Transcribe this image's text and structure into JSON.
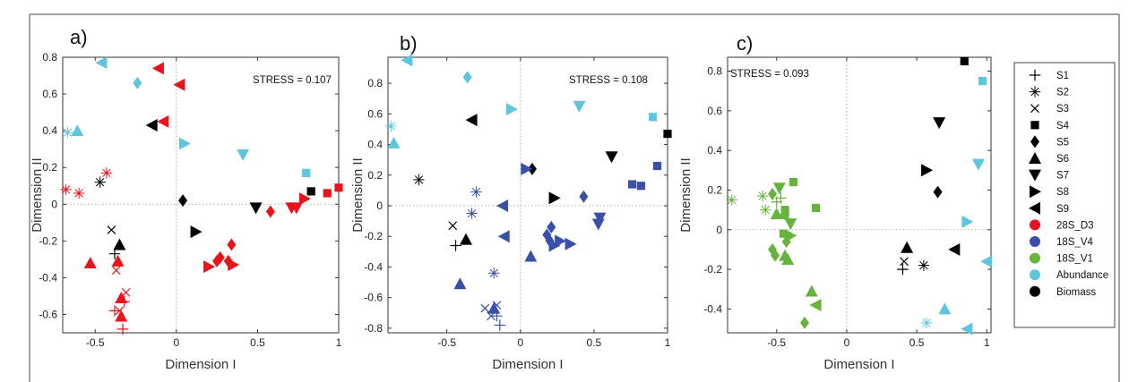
{
  "chart_data": [
    {
      "panel_label": "a)",
      "type": "scatter",
      "stress": "STRESS = 0.107",
      "xlabel": "Dimension I",
      "ylabel": "Dimension II",
      "xlim": [
        -0.7,
        1.0
      ],
      "ylim": [
        -0.7,
        0.8
      ],
      "xticks": [
        -0.5,
        0,
        0.5,
        1
      ],
      "xtick_labels": [
        "-0.5",
        "0",
        "0.5",
        "1"
      ],
      "yticks": [
        -0.6,
        -0.4,
        -0.2,
        0,
        0.2,
        0.4,
        0.6,
        0.8
      ],
      "ytick_labels": [
        "-0.6",
        "-0.4",
        "-0.2",
        "0",
        "0.2",
        "0.4",
        "0.6",
        "0.8"
      ],
      "points": [
        {
          "x": -0.46,
          "y": 0.77,
          "s": "S9",
          "c": "abundance"
        },
        {
          "x": -0.24,
          "y": 0.66,
          "s": "S5",
          "c": "abundance"
        },
        {
          "x": -0.11,
          "y": 0.74,
          "s": "S9",
          "c": "28S_D3"
        },
        {
          "x": 0.02,
          "y": 0.65,
          "s": "S9",
          "c": "28S_D3"
        },
        {
          "x": -0.08,
          "y": 0.45,
          "s": "S9",
          "c": "28S_D3"
        },
        {
          "x": -0.15,
          "y": 0.43,
          "s": "S9",
          "c": "biomass"
        },
        {
          "x": 0.05,
          "y": 0.33,
          "s": "S8",
          "c": "abundance"
        },
        {
          "x": 0.41,
          "y": 0.27,
          "s": "S7",
          "c": "abundance"
        },
        {
          "x": -0.67,
          "y": 0.39,
          "s": "S2",
          "c": "abundance"
        },
        {
          "x": -0.61,
          "y": 0.4,
          "s": "S6",
          "c": "abundance"
        },
        {
          "x": -0.68,
          "y": 0.08,
          "s": "S2",
          "c": "28S_D3"
        },
        {
          "x": -0.6,
          "y": 0.06,
          "s": "S2",
          "c": "28S_D3"
        },
        {
          "x": -0.47,
          "y": 0.12,
          "s": "S2",
          "c": "biomass"
        },
        {
          "x": -0.43,
          "y": 0.17,
          "s": "S2",
          "c": "28S_D3"
        },
        {
          "x": 0.04,
          "y": 0.02,
          "s": "S5",
          "c": "biomass"
        },
        {
          "x": 0.8,
          "y": 0.17,
          "s": "S4",
          "c": "abundance"
        },
        {
          "x": 0.83,
          "y": 0.07,
          "s": "S4",
          "c": "biomass"
        },
        {
          "x": 0.93,
          "y": 0.06,
          "s": "S4",
          "c": "28S_D3"
        },
        {
          "x": 1.0,
          "y": 0.09,
          "s": "S4",
          "c": "28S_D3"
        },
        {
          "x": 0.79,
          "y": 0.03,
          "s": "S8",
          "c": "28S_D3"
        },
        {
          "x": 0.74,
          "y": -0.02,
          "s": "S7",
          "c": "28S_D3"
        },
        {
          "x": 0.71,
          "y": -0.02,
          "s": "S7",
          "c": "28S_D3"
        },
        {
          "x": 0.49,
          "y": -0.02,
          "s": "S7",
          "c": "biomass"
        },
        {
          "x": 0.58,
          "y": -0.04,
          "s": "S5",
          "c": "28S_D3"
        },
        {
          "x": 0.12,
          "y": -0.15,
          "s": "S8",
          "c": "biomass"
        },
        {
          "x": 0.34,
          "y": -0.22,
          "s": "S5",
          "c": "28S_D3"
        },
        {
          "x": 0.27,
          "y": -0.29,
          "s": "S5",
          "c": "28S_D3"
        },
        {
          "x": 0.25,
          "y": -0.31,
          "s": "S5",
          "c": "28S_D3"
        },
        {
          "x": 0.32,
          "y": -0.31,
          "s": "S5",
          "c": "28S_D3"
        },
        {
          "x": 0.35,
          "y": -0.33,
          "s": "S8",
          "c": "28S_D3"
        },
        {
          "x": 0.2,
          "y": -0.34,
          "s": "S8",
          "c": "28S_D3"
        },
        {
          "x": -0.4,
          "y": -0.14,
          "s": "S3",
          "c": "biomass"
        },
        {
          "x": -0.35,
          "y": -0.22,
          "s": "S6",
          "c": "biomass"
        },
        {
          "x": -0.38,
          "y": -0.27,
          "s": "S1",
          "c": "biomass"
        },
        {
          "x": -0.36,
          "y": -0.31,
          "s": "S6",
          "c": "28S_D3"
        },
        {
          "x": -0.53,
          "y": -0.32,
          "s": "S6",
          "c": "28S_D3"
        },
        {
          "x": -0.37,
          "y": -0.36,
          "s": "S3",
          "c": "28S_D3"
        },
        {
          "x": -0.34,
          "y": -0.51,
          "s": "S6",
          "c": "28S_D3"
        },
        {
          "x": -0.31,
          "y": -0.48,
          "s": "S3",
          "c": "28S_D3"
        },
        {
          "x": -0.32,
          "y": -0.53,
          "s": "S1",
          "c": "28S_D3"
        },
        {
          "x": -0.38,
          "y": -0.58,
          "s": "S1",
          "c": "28S_D3"
        },
        {
          "x": -0.35,
          "y": -0.58,
          "s": "S3",
          "c": "28S_D3"
        },
        {
          "x": -0.34,
          "y": -0.61,
          "s": "S6",
          "c": "28S_D3"
        },
        {
          "x": -0.33,
          "y": -0.68,
          "s": "S1",
          "c": "28S_D3"
        }
      ]
    },
    {
      "panel_label": "b)",
      "type": "scatter",
      "stress": "STRESS = 0.108",
      "xlabel": "Dimension I",
      "ylabel": "Dimension II",
      "xlim": [
        -0.9,
        1.0
      ],
      "ylim": [
        -0.83,
        0.97
      ],
      "xticks": [
        -0.5,
        0,
        0.5,
        1
      ],
      "xtick_labels": [
        "-0.5",
        "0",
        "0.5",
        "1"
      ],
      "yticks": [
        -0.8,
        -0.6,
        -0.4,
        -0.2,
        0,
        0.2,
        0.4,
        0.6,
        0.8
      ],
      "ytick_labels": [
        "-0.8",
        "-0.6",
        "-0.4",
        "-0.2",
        "0",
        "0.2",
        "0.4",
        "0.6",
        "0.8"
      ],
      "points": [
        {
          "x": -0.77,
          "y": 0.95,
          "s": "S9",
          "c": "abundance"
        },
        {
          "x": -0.36,
          "y": 0.84,
          "s": "S5",
          "c": "abundance"
        },
        {
          "x": -0.33,
          "y": 0.56,
          "s": "S9",
          "c": "biomass"
        },
        {
          "x": -0.06,
          "y": 0.63,
          "s": "S8",
          "c": "abundance"
        },
        {
          "x": 0.4,
          "y": 0.65,
          "s": "S7",
          "c": "abundance"
        },
        {
          "x": -0.88,
          "y": 0.52,
          "s": "S2",
          "c": "abundance"
        },
        {
          "x": -0.86,
          "y": 0.41,
          "s": "S6",
          "c": "abundance"
        },
        {
          "x": -0.69,
          "y": 0.17,
          "s": "S2",
          "c": "biomass"
        },
        {
          "x": 0.9,
          "y": 0.58,
          "s": "S4",
          "c": "abundance"
        },
        {
          "x": 1.0,
          "y": 0.47,
          "s": "S4",
          "c": "biomass"
        },
        {
          "x": 0.62,
          "y": 0.32,
          "s": "S7",
          "c": "biomass"
        },
        {
          "x": 0.76,
          "y": 0.14,
          "s": "S4",
          "c": "18S_V4"
        },
        {
          "x": 0.82,
          "y": 0.13,
          "s": "S4",
          "c": "18S_V4"
        },
        {
          "x": 0.93,
          "y": 0.26,
          "s": "S4",
          "c": "18S_V4"
        },
        {
          "x": 0.08,
          "y": 0.24,
          "s": "S5",
          "c": "biomass"
        },
        {
          "x": 0.04,
          "y": 0.24,
          "s": "S8",
          "c": "18S_V4"
        },
        {
          "x": -0.3,
          "y": 0.09,
          "s": "S2",
          "c": "18S_V4"
        },
        {
          "x": -0.33,
          "y": -0.05,
          "s": "S2",
          "c": "18S_V4"
        },
        {
          "x": -0.12,
          "y": 0.0,
          "s": "S9",
          "c": "18S_V4"
        },
        {
          "x": 0.23,
          "y": 0.05,
          "s": "S8",
          "c": "biomass"
        },
        {
          "x": 0.43,
          "y": 0.06,
          "s": "S5",
          "c": "18S_V4"
        },
        {
          "x": 0.54,
          "y": -0.08,
          "s": "S7",
          "c": "18S_V4"
        },
        {
          "x": 0.53,
          "y": -0.12,
          "s": "S7",
          "c": "18S_V4"
        },
        {
          "x": 0.21,
          "y": -0.14,
          "s": "S5",
          "c": "18S_V4"
        },
        {
          "x": 0.18,
          "y": -0.19,
          "s": "S5",
          "c": "18S_V4"
        },
        {
          "x": -0.11,
          "y": -0.2,
          "s": "S9",
          "c": "18S_V4"
        },
        {
          "x": 0.2,
          "y": -0.23,
          "s": "S5",
          "c": "18S_V4"
        },
        {
          "x": 0.27,
          "y": -0.23,
          "s": "S8",
          "c": "18S_V4"
        },
        {
          "x": 0.34,
          "y": -0.25,
          "s": "S8",
          "c": "18S_V4"
        },
        {
          "x": 0.23,
          "y": -0.26,
          "s": "S8",
          "c": "18S_V4"
        },
        {
          "x": 0.07,
          "y": -0.33,
          "s": "S6",
          "c": "18S_V4"
        },
        {
          "x": -0.46,
          "y": -0.13,
          "s": "S3",
          "c": "biomass"
        },
        {
          "x": -0.44,
          "y": -0.26,
          "s": "S1",
          "c": "biomass"
        },
        {
          "x": -0.37,
          "y": -0.22,
          "s": "S6",
          "c": "biomass"
        },
        {
          "x": -0.41,
          "y": -0.51,
          "s": "S6",
          "c": "18S_V4"
        },
        {
          "x": -0.18,
          "y": -0.44,
          "s": "S2",
          "c": "18S_V4"
        },
        {
          "x": -0.16,
          "y": -0.65,
          "s": "S3",
          "c": "18S_V4"
        },
        {
          "x": -0.18,
          "y": -0.67,
          "s": "S6",
          "c": "18S_V4"
        },
        {
          "x": -0.24,
          "y": -0.67,
          "s": "S3",
          "c": "18S_V4"
        },
        {
          "x": -0.2,
          "y": -0.72,
          "s": "S3",
          "c": "18S_V4"
        },
        {
          "x": -0.16,
          "y": -0.72,
          "s": "S1",
          "c": "18S_V4"
        },
        {
          "x": -0.14,
          "y": -0.78,
          "s": "S1",
          "c": "18S_V4"
        }
      ]
    },
    {
      "panel_label": "c)",
      "type": "scatter",
      "stress": "STRESS = 0.093",
      "xlabel": "Dimension I",
      "ylabel": "Dimension II",
      "xlim": [
        -0.85,
        1.03
      ],
      "ylim": [
        -0.52,
        0.87
      ],
      "xticks": [
        -0.5,
        0,
        0.5,
        1
      ],
      "xtick_labels": [
        "-0.5",
        "0",
        "0.5",
        "1"
      ],
      "yticks": [
        -0.4,
        -0.2,
        0,
        0.2,
        0.4,
        0.6,
        0.8
      ],
      "ytick_labels": [
        "-0.4",
        "-0.2",
        "0",
        "0.2",
        "0.4",
        "0.6",
        "0.8"
      ],
      "points": [
        {
          "x": 0.84,
          "y": 0.85,
          "s": "S4",
          "c": "biomass"
        },
        {
          "x": 0.97,
          "y": 0.75,
          "s": "S4",
          "c": "abundance"
        },
        {
          "x": 0.66,
          "y": 0.54,
          "s": "S7",
          "c": "biomass"
        },
        {
          "x": 0.94,
          "y": 0.33,
          "s": "S7",
          "c": "abundance"
        },
        {
          "x": 0.57,
          "y": 0.3,
          "s": "S8",
          "c": "biomass"
        },
        {
          "x": 0.65,
          "y": 0.19,
          "s": "S5",
          "c": "biomass"
        },
        {
          "x": 0.86,
          "y": 0.04,
          "s": "S8",
          "c": "abundance"
        },
        {
          "x": 0.43,
          "y": -0.09,
          "s": "S6",
          "c": "biomass"
        },
        {
          "x": 0.77,
          "y": -0.1,
          "s": "S9",
          "c": "biomass"
        },
        {
          "x": 1.0,
          "y": -0.16,
          "s": "S9",
          "c": "abundance"
        },
        {
          "x": 0.41,
          "y": -0.16,
          "s": "S3",
          "c": "biomass"
        },
        {
          "x": 0.55,
          "y": -0.18,
          "s": "S2",
          "c": "biomass"
        },
        {
          "x": 0.4,
          "y": -0.2,
          "s": "S1",
          "c": "biomass"
        },
        {
          "x": 0.7,
          "y": -0.4,
          "s": "S6",
          "c": "abundance"
        },
        {
          "x": 0.57,
          "y": -0.47,
          "s": "S2",
          "c": "abundance"
        },
        {
          "x": 0.86,
          "y": -0.5,
          "s": "S9",
          "c": "abundance"
        },
        {
          "x": -0.82,
          "y": 0.15,
          "s": "S2",
          "c": "18S_V1"
        },
        {
          "x": -0.6,
          "y": 0.17,
          "s": "S2",
          "c": "18S_V1"
        },
        {
          "x": -0.58,
          "y": 0.1,
          "s": "S2",
          "c": "18S_V1"
        },
        {
          "x": -0.53,
          "y": 0.18,
          "s": "S5",
          "c": "18S_V1"
        },
        {
          "x": -0.48,
          "y": 0.21,
          "s": "S7",
          "c": "18S_V1"
        },
        {
          "x": -0.38,
          "y": 0.24,
          "s": "S4",
          "c": "18S_V1"
        },
        {
          "x": -0.22,
          "y": 0.11,
          "s": "S4",
          "c": "18S_V1"
        },
        {
          "x": -0.44,
          "y": 0.1,
          "s": "S4",
          "c": "18S_V1"
        },
        {
          "x": -0.5,
          "y": 0.14,
          "s": "S1",
          "c": "18S_V1"
        },
        {
          "x": -0.47,
          "y": 0.16,
          "s": "S1",
          "c": "18S_V1"
        },
        {
          "x": -0.5,
          "y": 0.08,
          "s": "S6",
          "c": "18S_V1"
        },
        {
          "x": -0.45,
          "y": 0.07,
          "s": "S9",
          "c": "18S_V1"
        },
        {
          "x": -0.4,
          "y": 0.03,
          "s": "S7",
          "c": "18S_V1"
        },
        {
          "x": -0.45,
          "y": -0.02,
          "s": "S4",
          "c": "18S_V1"
        },
        {
          "x": -0.4,
          "y": -0.03,
          "s": "S8",
          "c": "18S_V1"
        },
        {
          "x": -0.43,
          "y": -0.06,
          "s": "S5",
          "c": "18S_V1"
        },
        {
          "x": -0.53,
          "y": -0.1,
          "s": "S5",
          "c": "18S_V1"
        },
        {
          "x": -0.51,
          "y": -0.13,
          "s": "S5",
          "c": "18S_V1"
        },
        {
          "x": -0.44,
          "y": -0.13,
          "s": "S6",
          "c": "18S_V1"
        },
        {
          "x": -0.42,
          "y": -0.15,
          "s": "S6",
          "c": "18S_V1"
        },
        {
          "x": -0.25,
          "y": -0.31,
          "s": "S6",
          "c": "18S_V1"
        },
        {
          "x": -0.22,
          "y": -0.38,
          "s": "S9",
          "c": "18S_V1"
        },
        {
          "x": -0.3,
          "y": -0.47,
          "s": "S5",
          "c": "18S_V1"
        }
      ]
    }
  ],
  "legend": {
    "symbols": [
      {
        "label": "S1",
        "shape": "plus"
      },
      {
        "label": "S2",
        "shape": "asterisk"
      },
      {
        "label": "S3",
        "shape": "cross"
      },
      {
        "label": "S4",
        "shape": "square"
      },
      {
        "label": "S5",
        "shape": "diamond"
      },
      {
        "label": "S6",
        "shape": "triangle-up"
      },
      {
        "label": "S7",
        "shape": "triangle-down"
      },
      {
        "label": "S8",
        "shape": "triangle-right"
      },
      {
        "label": "S9",
        "shape": "triangle-left"
      }
    ],
    "colors": [
      {
        "label": "28S_D3",
        "color": "#e8141c"
      },
      {
        "label": "18S_V4",
        "color": "#3a50a8"
      },
      {
        "label": "18S_V1",
        "color": "#66b33d"
      },
      {
        "label": "Abundance",
        "color": "#5ec6dc"
      },
      {
        "label": "Biomass",
        "color": "#000000"
      }
    ]
  },
  "colors": {
    "28S_D3": "#e8141c",
    "18S_V4": "#3a50a8",
    "18S_V1": "#66b33d",
    "abundance": "#5ec6dc",
    "biomass": "#000000"
  }
}
